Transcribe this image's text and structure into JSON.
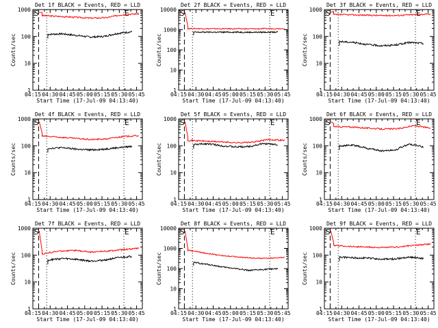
{
  "page": {
    "title_suffix": " BLACK = Events, RED = LLD",
    "xlabel": "Start Time (17-Jul-09 04:13:40)",
    "ylabel": "Counts/sec",
    "marker_start": "S",
    "marker_end": "E"
  },
  "chart_data": {
    "type": "line",
    "xticks": [
      "04:15",
      "04:30",
      "04:45",
      "05:00",
      "05:15",
      "05:30",
      "05:45"
    ],
    "yticks": [
      "1",
      "10",
      "100",
      "1000",
      "10000"
    ],
    "x_range_minutes": [
      15,
      110
    ],
    "ylim": [
      1,
      10000
    ],
    "yscale": "log",
    "colors": {
      "events": "#000000",
      "lld": "#ff0000"
    },
    "panels": [
      {
        "label": "Det 1f",
        "ytop": 1000,
        "events": [
          120,
          125,
          110,
          95,
          100,
          130,
          150
        ],
        "lld": [
          600,
          560,
          520,
          480,
          500,
          650,
          700
        ]
      },
      {
        "label": "Det 2f",
        "ytop": 10000,
        "events": [
          750,
          760,
          755,
          760,
          750,
          755,
          760
        ],
        "lld": [
          1150,
          1130,
          1120,
          1120,
          1110,
          1130,
          1150
        ]
      },
      {
        "label": "Det 3f",
        "ytop": 1000,
        "events": [
          65,
          60,
          50,
          45,
          48,
          60,
          55
        ],
        "lld": [
          650,
          640,
          620,
          600,
          610,
          650,
          680
        ]
      },
      {
        "label": "Det 4f",
        "ytop": 1000,
        "events": [
          80,
          85,
          75,
          70,
          75,
          85,
          95
        ],
        "lld": [
          230,
          210,
          190,
          170,
          180,
          220,
          240
        ]
      },
      {
        "label": "Det 5f",
        "ytop": 1000,
        "events": [
          110,
          120,
          100,
          90,
          95,
          120,
          110
        ],
        "lld": [
          160,
          150,
          140,
          130,
          135,
          170,
          160
        ]
      },
      {
        "label": "Det 6f",
        "ytop": 1000,
        "events": [
          100,
          105,
          80,
          65,
          70,
          115,
          90
        ],
        "lld": [
          520,
          500,
          460,
          420,
          430,
          560,
          450
        ]
      },
      {
        "label": "Det 7f",
        "ytop": 1000,
        "events": [
          65,
          75,
          70,
          60,
          65,
          80,
          90
        ],
        "lld": [
          110,
          140,
          150,
          130,
          140,
          160,
          180
        ]
      },
      {
        "label": "Det 8f",
        "ytop": 10000,
        "events": [
          200,
          160,
          120,
          100,
          80,
          90,
          100
        ],
        "lld": [
          800,
          600,
          450,
          380,
          330,
          320,
          360
        ]
      },
      {
        "label": "Det 9f",
        "ytop": 1000,
        "events": [
          85,
          80,
          78,
          70,
          72,
          85,
          75
        ],
        "lld": [
          230,
          210,
          200,
          190,
          200,
          230,
          260
        ]
      }
    ]
  }
}
